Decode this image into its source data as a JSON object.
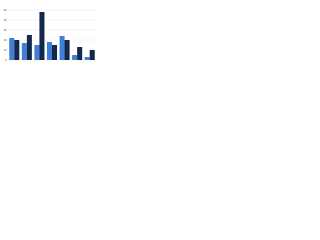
{
  "chart_data": {
    "type": "bar",
    "categories": [
      null,
      null,
      null,
      null,
      null,
      null,
      null
    ],
    "series": [
      {
        "color": "#3f7fd6",
        "values": [
          22,
          17,
          15,
          18,
          24,
          5,
          3
        ]
      },
      {
        "color": "#14284b",
        "values": [
          20,
          25,
          48,
          15,
          20,
          13,
          10
        ]
      }
    ],
    "ylim": [
      0,
      50
    ],
    "yticks": [
      0,
      10,
      20,
      30,
      40,
      50
    ],
    "grid": true
  }
}
